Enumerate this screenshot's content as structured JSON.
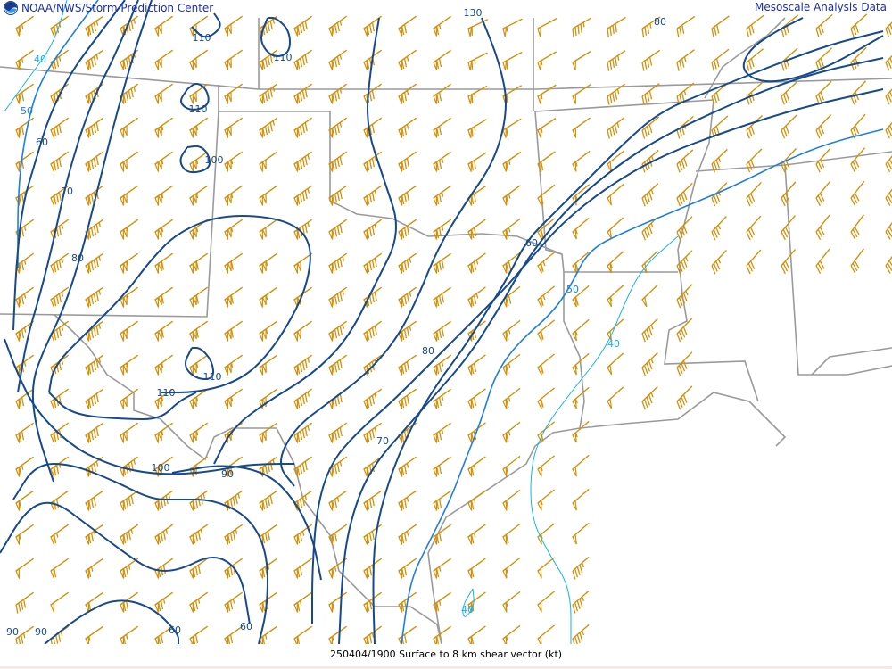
{
  "header": {
    "org_title": "NOAA/NWS/Storm Prediction Center",
    "product_title": "Mesoscale Analysis Data",
    "logo_text": "NOAA"
  },
  "footer": {
    "caption": "250404/1900 Surface to 8 km shear vector (kt)"
  },
  "map": {
    "field": "Surface to 8 km shear vector",
    "units": "kt",
    "colors": {
      "contour_strong": "#174a8b",
      "contour_50": "#1e7fe0",
      "contour_40": "#12b4ea",
      "barbs": "#d4900a",
      "borders": "#9a9a9a"
    },
    "contour_labels": [
      "40",
      "50",
      "60",
      "70",
      "80",
      "100",
      "110",
      "110",
      "110",
      "110",
      "100",
      "110",
      "100",
      "90",
      "80",
      "70",
      "60",
      "50",
      "40",
      "40",
      "60",
      "60",
      "90",
      "90",
      "80",
      "130"
    ]
  }
}
